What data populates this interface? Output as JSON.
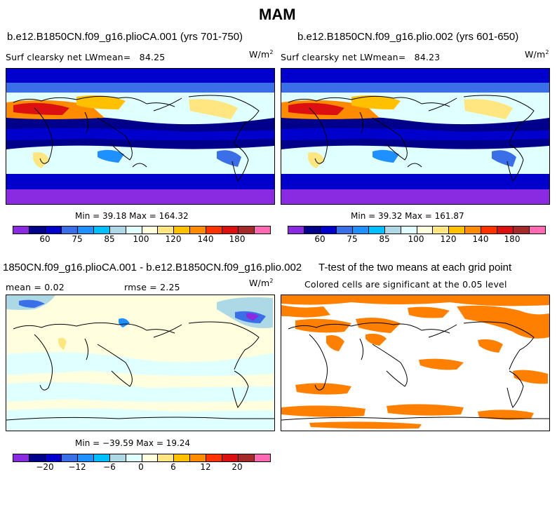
{
  "title": "MAM",
  "panels": [
    {
      "title": "b.e12.B1850CN.f09_g16.plioCA.001 (yrs 701-750)",
      "label": "Surf clearsky net LW",
      "mean_label": "mean=",
      "mean": "84.25",
      "units": "W/m",
      "units_exp": "2",
      "minmax": "Min =  39.18 Max = 164.32"
    },
    {
      "title": "b.e12.B1850CN.f09_g16.plio.002 (yrs 601-650)",
      "label": "Surf clearsky net LW",
      "mean_label": "mean=",
      "mean": "84.23",
      "units": "W/m",
      "units_exp": "2",
      "minmax": "Min =  39.32 Max = 161.87"
    },
    {
      "title": "1850CN.f09_g16.plioCA.001 - b.e12.B1850CN.f09_g16.plio.002",
      "mean_text": "mean =   0.02",
      "rmse_text": "rmse =   2.25",
      "units": "W/m",
      "units_exp": "2",
      "minmax": "Min = −39.59 Max =  19.24"
    },
    {
      "title": "T-test of the two means at each grid point",
      "subtitle": "Colored cells are significant at the 0.05 level"
    }
  ],
  "colorbar_abs": {
    "colors": [
      "#8a2be2",
      "#00008b",
      "#0000cd",
      "#3a6fe8",
      "#1e90ff",
      "#00bfff",
      "#add8e6",
      "#e0ffff",
      "#ffffe0",
      "#ffe680",
      "#ffc000",
      "#ff8c00",
      "#ff3300",
      "#dc1010",
      "#a52a2a",
      "#ff69b4"
    ],
    "ticks": [
      "60",
      "75",
      "85",
      "100",
      "120",
      "140",
      "180"
    ]
  },
  "colorbar_diff": {
    "colors": [
      "#8a2be2",
      "#00008b",
      "#0000cd",
      "#3a6fe8",
      "#1e90ff",
      "#00bfff",
      "#add8e6",
      "#e0ffff",
      "#ffffe0",
      "#ffe680",
      "#ffc000",
      "#ff8c00",
      "#ff3300",
      "#dc1010",
      "#a52a2a",
      "#ff69b4"
    ],
    "ticks": [
      "−20",
      "−12",
      "−6",
      "0",
      "6",
      "12",
      "20"
    ]
  }
}
